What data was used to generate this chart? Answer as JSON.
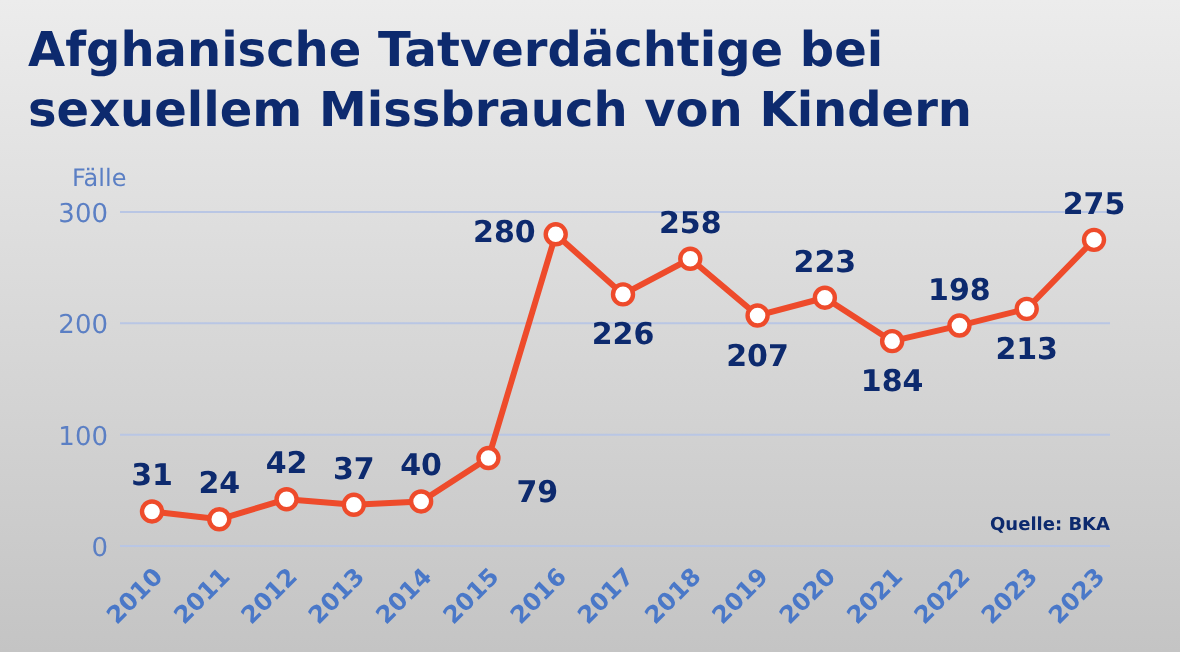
{
  "chart_data": {
    "type": "line",
    "title": "Afghanische Tatverdächtige bei sexuellem Missbrauch von Kindern",
    "ylabel": "Fälle",
    "categories": [
      "2010",
      "2011",
      "2012",
      "2013",
      "2014",
      "2015",
      "2016",
      "2017",
      "2018",
      "2019",
      "2020",
      "2021",
      "2022",
      "2023",
      "2023"
    ],
    "series": [
      {
        "color": "#ee4b2b",
        "values": [
          31,
          24,
          42,
          37,
          40,
          79,
          280,
          226,
          258,
          207,
          223,
          184,
          198,
          213,
          275
        ]
      }
    ],
    "ylim": [
      0,
      300
    ],
    "yticks": [
      0,
      100,
      200,
      300
    ],
    "grid": "y",
    "marker": "circle",
    "data_labels": true,
    "line_style": "solid",
    "annotations": [
      "Quelle: BKA"
    ]
  }
}
